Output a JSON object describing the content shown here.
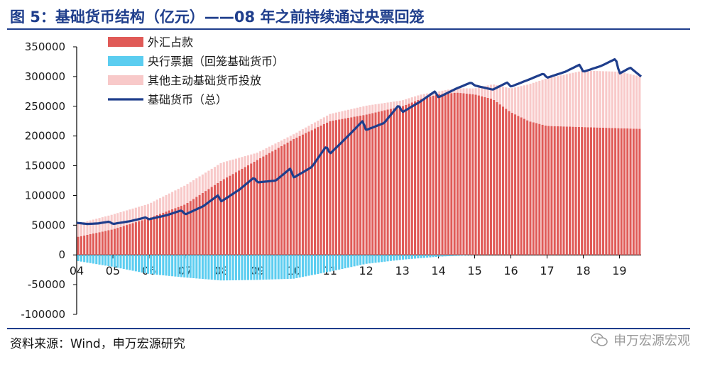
{
  "title": "图 5：基础货币结构（亿元）——08 年之前持续通过央票回笼",
  "source": "资料来源：Wind，申万宏源研究",
  "watermark": {
    "text": "申万宏源宏观",
    "icon": "wechat-icon"
  },
  "colors": {
    "title": "#1f3e8c",
    "fx": "#e05a57",
    "cbbills": "#5bcdf0",
    "other": "#f8c9c9",
    "base": "#1f3e8c"
  },
  "chart_data": {
    "type": "bar",
    "stacked": true,
    "x_unit": "year",
    "x_start": 2004.0,
    "x_end": 2019.6,
    "x_ticks": [
      {
        "x": 2004,
        "label": "04"
      },
      {
        "x": 2005,
        "label": "05"
      },
      {
        "x": 2006,
        "label": "06"
      },
      {
        "x": 2007,
        "label": "07"
      },
      {
        "x": 2008,
        "label": "08"
      },
      {
        "x": 2009,
        "label": "09"
      },
      {
        "x": 2010,
        "label": "10"
      },
      {
        "x": 2011,
        "label": "11"
      },
      {
        "x": 2012,
        "label": "12"
      },
      {
        "x": 2013,
        "label": "13"
      },
      {
        "x": 2014,
        "label": "14"
      },
      {
        "x": 2015,
        "label": "15"
      },
      {
        "x": 2016,
        "label": "16"
      },
      {
        "x": 2017,
        "label": "17"
      },
      {
        "x": 2018,
        "label": "18"
      },
      {
        "x": 2019,
        "label": "19"
      }
    ],
    "ylim": [
      -100000,
      350000
    ],
    "yticks": [
      -100000,
      -50000,
      0,
      50000,
      100000,
      150000,
      200000,
      250000,
      300000,
      350000
    ],
    "legend_position": "top-left",
    "series": [
      {
        "name": "外汇占款",
        "kind": "bar",
        "color": "#e05a57",
        "points": [
          [
            2004.0,
            30000
          ],
          [
            2005.0,
            43000
          ],
          [
            2006.0,
            62000
          ],
          [
            2007.0,
            85000
          ],
          [
            2008.0,
            125000
          ],
          [
            2009.0,
            160000
          ],
          [
            2010.0,
            195000
          ],
          [
            2011.0,
            225000
          ],
          [
            2012.0,
            236000
          ],
          [
            2013.0,
            250000
          ],
          [
            2013.5,
            262000
          ],
          [
            2014.0,
            270000
          ],
          [
            2014.5,
            273000
          ],
          [
            2015.0,
            270000
          ],
          [
            2015.5,
            262000
          ],
          [
            2016.0,
            240000
          ],
          [
            2016.5,
            225000
          ],
          [
            2017.0,
            217000
          ],
          [
            2018.0,
            215000
          ],
          [
            2019.6,
            212000
          ]
        ]
      },
      {
        "name": "央行票据（回笼基础货币）",
        "kind": "bar",
        "color": "#5bcdf0",
        "points": [
          [
            2004.0,
            -10000
          ],
          [
            2005.0,
            -20000
          ],
          [
            2006.0,
            -32000
          ],
          [
            2007.0,
            -38000
          ],
          [
            2008.0,
            -43000
          ],
          [
            2009.0,
            -42000
          ],
          [
            2010.0,
            -40000
          ],
          [
            2011.0,
            -28000
          ],
          [
            2012.0,
            -15000
          ],
          [
            2013.0,
            -8000
          ],
          [
            2014.0,
            -3000
          ],
          [
            2015.0,
            0
          ],
          [
            2019.6,
            0
          ]
        ]
      },
      {
        "name": "其他主动基础货币投放",
        "kind": "bar",
        "color": "#f8c9c9",
        "points": [
          [
            2004.0,
            22000
          ],
          [
            2005.0,
            25000
          ],
          [
            2006.0,
            24000
          ],
          [
            2007.0,
            32000
          ],
          [
            2008.0,
            30000
          ],
          [
            2009.0,
            12000
          ],
          [
            2010.0,
            8000
          ],
          [
            2011.0,
            12000
          ],
          [
            2012.0,
            15000
          ],
          [
            2013.0,
            10000
          ],
          [
            2014.0,
            5000
          ],
          [
            2015.0,
            10000
          ],
          [
            2016.0,
            40000
          ],
          [
            2016.5,
            62000
          ],
          [
            2017.0,
            80000
          ],
          [
            2018.0,
            95000
          ],
          [
            2019.0,
            95000
          ],
          [
            2019.6,
            88000
          ]
        ]
      },
      {
        "name": "基础货币（总）",
        "kind": "line",
        "color": "#1f3e8c",
        "points": [
          [
            2004.0,
            54000
          ],
          [
            2004.3,
            52000
          ],
          [
            2004.6,
            53000
          ],
          [
            2004.9,
            56000
          ],
          [
            2005.0,
            52000
          ],
          [
            2005.5,
            57000
          ],
          [
            2005.9,
            63000
          ],
          [
            2006.0,
            60000
          ],
          [
            2006.5,
            67000
          ],
          [
            2006.9,
            75000
          ],
          [
            2007.0,
            68000
          ],
          [
            2007.5,
            82000
          ],
          [
            2007.9,
            100000
          ],
          [
            2008.0,
            90000
          ],
          [
            2008.5,
            110000
          ],
          [
            2008.9,
            130000
          ],
          [
            2009.0,
            122000
          ],
          [
            2009.5,
            125000
          ],
          [
            2009.9,
            145000
          ],
          [
            2010.0,
            130000
          ],
          [
            2010.5,
            148000
          ],
          [
            2010.9,
            183000
          ],
          [
            2011.0,
            170000
          ],
          [
            2011.5,
            200000
          ],
          [
            2011.9,
            225000
          ],
          [
            2012.0,
            210000
          ],
          [
            2012.5,
            222000
          ],
          [
            2012.9,
            252000
          ],
          [
            2013.0,
            240000
          ],
          [
            2013.5,
            258000
          ],
          [
            2013.9,
            275000
          ],
          [
            2014.0,
            265000
          ],
          [
            2014.5,
            280000
          ],
          [
            2014.9,
            290000
          ],
          [
            2015.0,
            285000
          ],
          [
            2015.5,
            278000
          ],
          [
            2015.9,
            290000
          ],
          [
            2016.0,
            283000
          ],
          [
            2016.5,
            295000
          ],
          [
            2016.9,
            305000
          ],
          [
            2017.0,
            298000
          ],
          [
            2017.5,
            308000
          ],
          [
            2017.9,
            320000
          ],
          [
            2018.0,
            308000
          ],
          [
            2018.5,
            318000
          ],
          [
            2018.9,
            330000
          ],
          [
            2019.0,
            305000
          ],
          [
            2019.3,
            315000
          ],
          [
            2019.6,
            300000
          ]
        ]
      }
    ]
  }
}
